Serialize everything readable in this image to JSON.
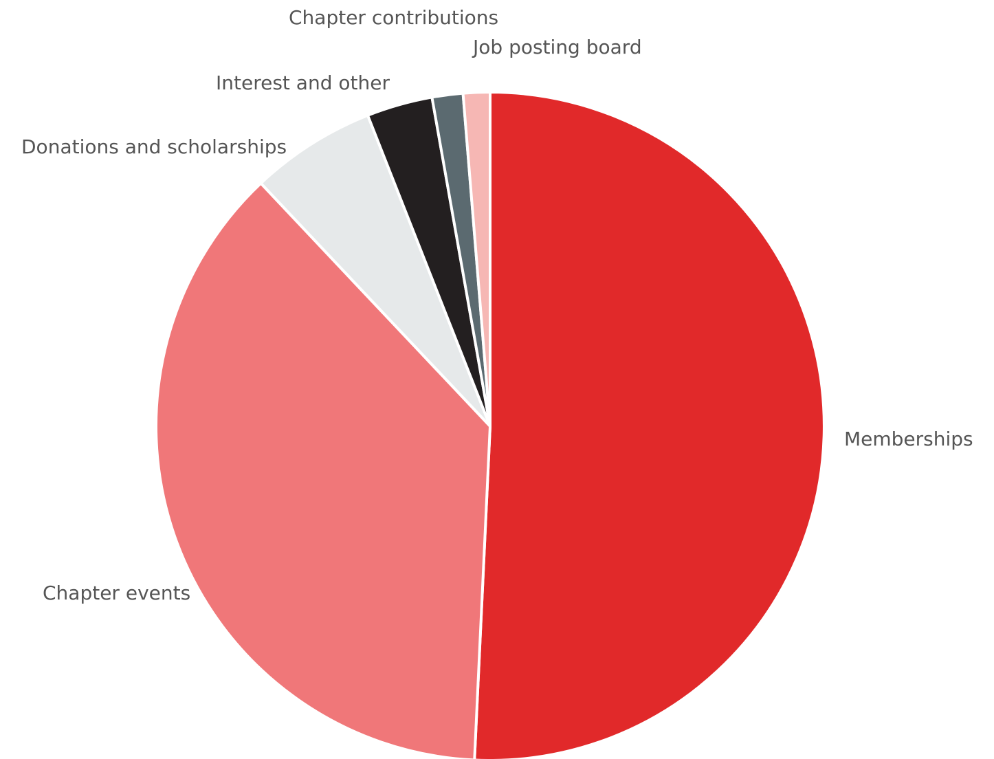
{
  "chart_data": {
    "type": "pie",
    "start_angle_deg": 0,
    "direction": "clockwise",
    "slices": [
      {
        "label": "Memberships",
        "value": 51.0,
        "color": "#E1292A"
      },
      {
        "label": "Chapter events",
        "value": 37.4,
        "color": "#F07779"
      },
      {
        "label": "Donations and scholarships",
        "value": 6.1,
        "color": "#E6E9EA"
      },
      {
        "label": "Interest and other",
        "value": 3.2,
        "color": "#231F20"
      },
      {
        "label": "Chapter contributions",
        "value": 1.5,
        "color": "#5B6A70"
      },
      {
        "label": "Job posting board",
        "value": 1.3,
        "color": "#F6B7B4"
      }
    ],
    "legend": "none"
  }
}
